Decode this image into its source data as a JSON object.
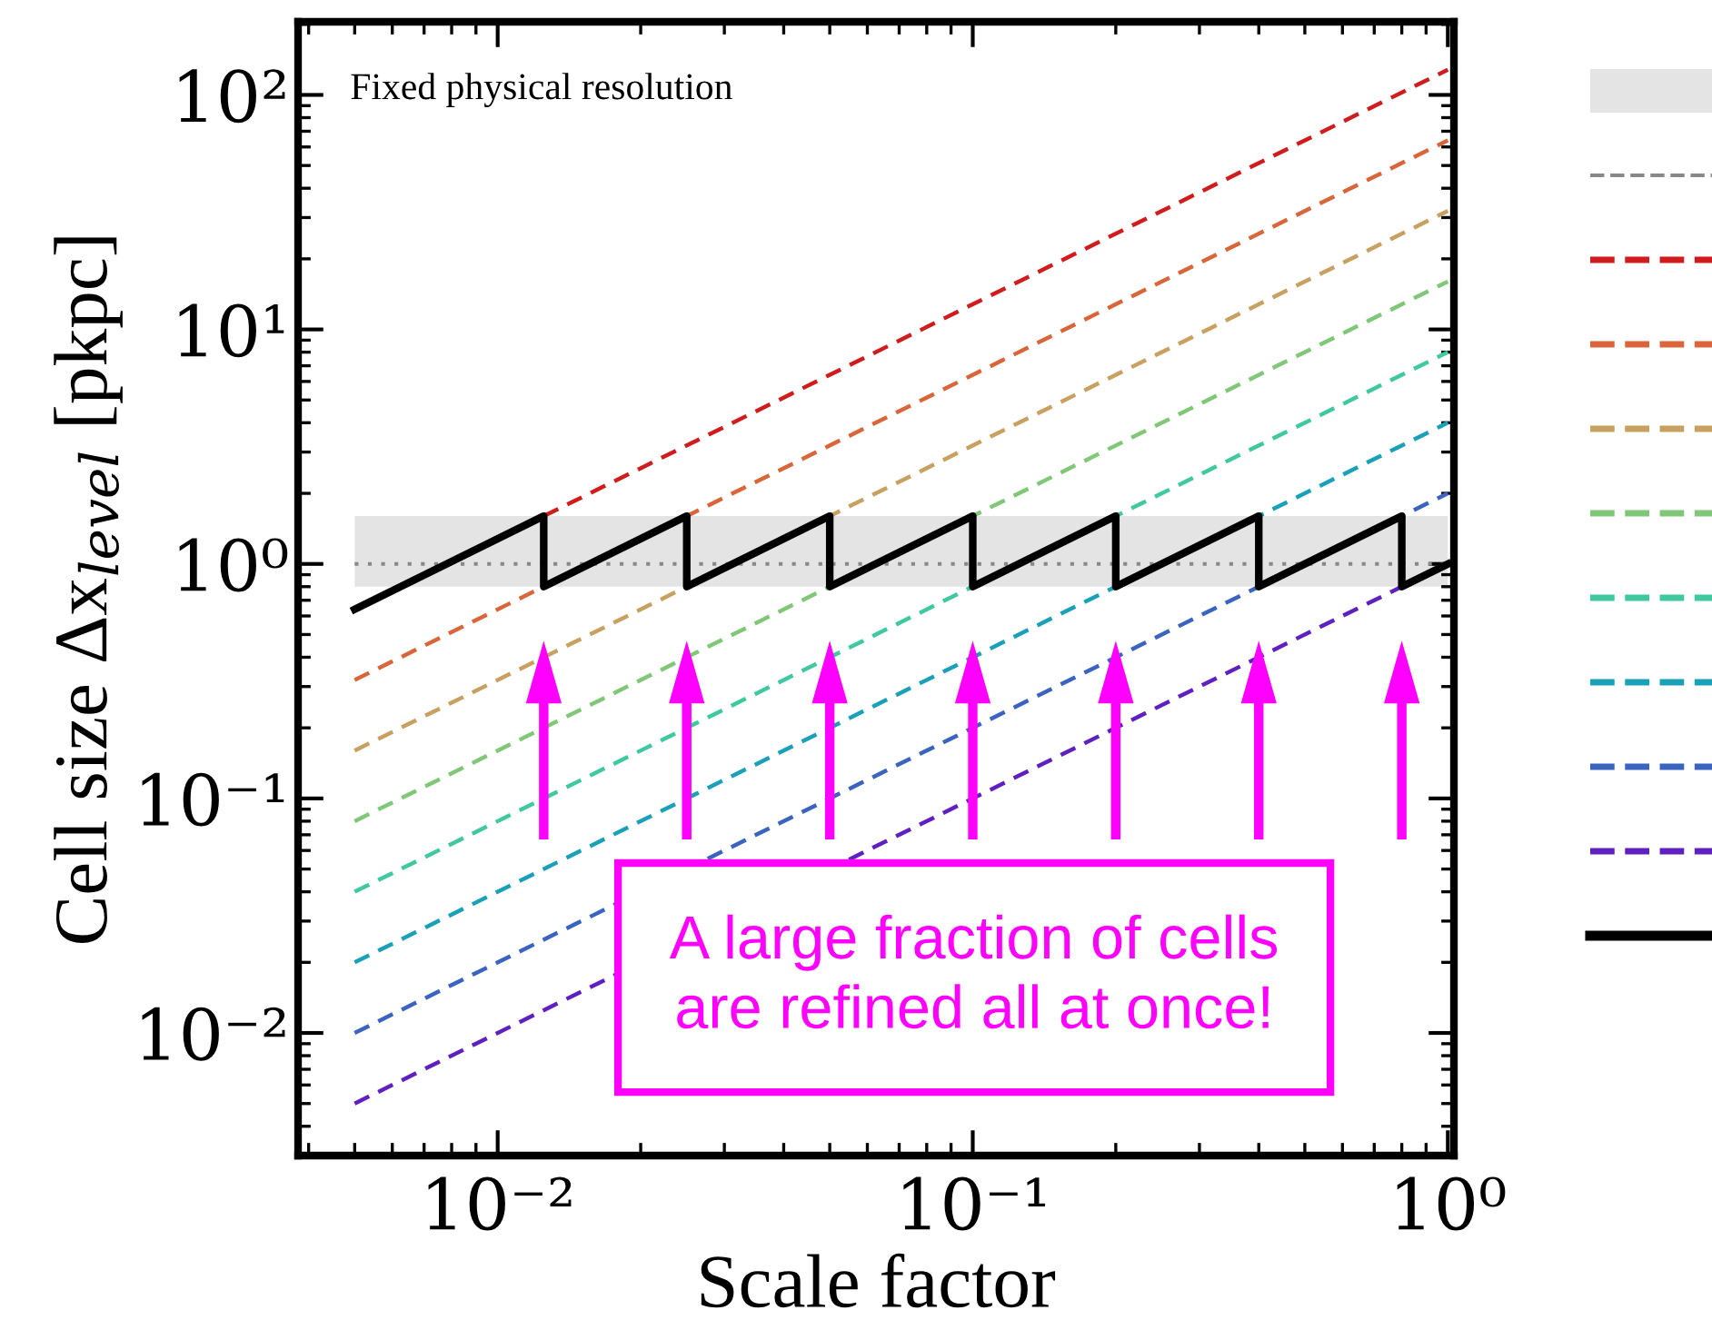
{
  "chart_data": {
    "type": "line",
    "xlabel": "Scale factor",
    "ylabel": "Cell size Δx$_{level}$ [pkpc]",
    "log": "xy",
    "xlim": [
      0.0038,
      1.03
    ],
    "ylim": [
      0.003,
      205
    ],
    "xticks": [
      {
        "value": 0.01,
        "label": "10⁻²"
      },
      {
        "value": 0.1,
        "label": "10⁻¹"
      },
      {
        "value": 1,
        "label": "10⁰"
      }
    ],
    "yticks": [
      {
        "value": 0.01,
        "label": "10⁻²"
      },
      {
        "value": 0.1,
        "label": "10⁻¹"
      },
      {
        "value": 1,
        "label": "10⁰"
      },
      {
        "value": 10,
        "label": "10¹"
      },
      {
        "value": 100,
        "label": "10²"
      }
    ],
    "grid": false,
    "marker": "none",
    "bands": [
      {
        "axis": "y",
        "from": 0.8,
        "to": 1.6,
        "color": "#e4e4e4"
      }
    ],
    "ref_lines": [
      {
        "axis": "y",
        "value": 1,
        "color": "#888888",
        "line_style": "dotted"
      }
    ],
    "series": [
      {
        "color": "#d01c1c",
        "line_style": "dashed",
        "x": [
          0.0125,
          1
        ],
        "values": [
          1.6,
          128
        ]
      },
      {
        "color": "#d8663a",
        "line_style": "dashed",
        "x": [
          0.005,
          1
        ],
        "values": [
          0.32,
          64
        ]
      },
      {
        "color": "#c8a060",
        "line_style": "dashed",
        "x": [
          0.005,
          1
        ],
        "values": [
          0.16,
          32
        ]
      },
      {
        "color": "#80c878",
        "line_style": "dashed",
        "x": [
          0.005,
          1
        ],
        "values": [
          0.08,
          16
        ]
      },
      {
        "color": "#40c8a0",
        "line_style": "dashed",
        "x": [
          0.005,
          1
        ],
        "values": [
          0.04,
          8
        ]
      },
      {
        "color": "#1aa0b8",
        "line_style": "dashed",
        "x": [
          0.005,
          1
        ],
        "values": [
          0.02,
          4
        ]
      },
      {
        "color": "#3a64c0",
        "line_style": "dashed",
        "x": [
          0.005,
          1
        ],
        "values": [
          0.01,
          2
        ]
      },
      {
        "color": "#6020c0",
        "line_style": "dashed",
        "x": [
          0.005,
          0.8
        ],
        "values": [
          0.005,
          0.8
        ]
      },
      {
        "color": "#000000",
        "line_style": "solid",
        "x": [
          0.005,
          0.0125,
          0.0125,
          0.025,
          0.025,
          0.05,
          0.05,
          0.1,
          0.1,
          0.2,
          0.2,
          0.4,
          0.4,
          0.8,
          0.8,
          1
        ],
        "values": [
          0.64,
          1.6,
          0.8,
          1.6,
          0.8,
          1.6,
          0.8,
          1.6,
          0.8,
          1.6,
          0.8,
          1.6,
          0.8,
          1.6,
          0.8,
          1.0
        ]
      }
    ],
    "annotations": [
      "Fixed physical resolution",
      "A large fraction of cells\nare refined all at once!"
    ]
  }
}
